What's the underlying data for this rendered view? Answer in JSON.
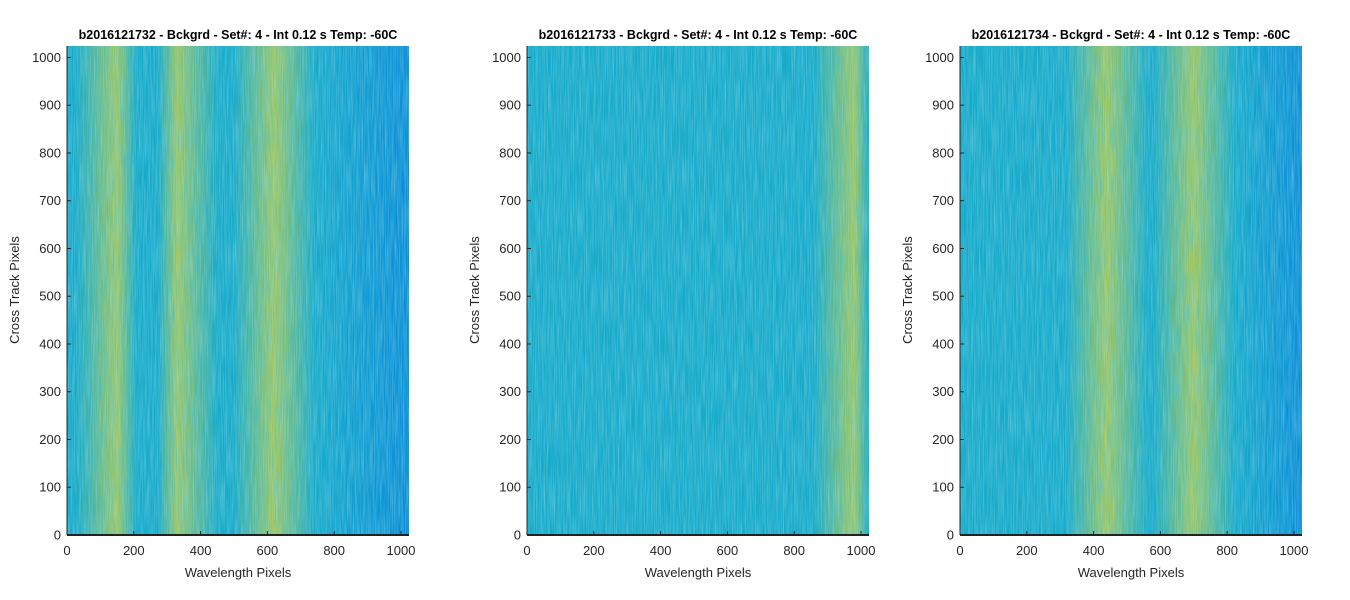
{
  "chart_data": [
    {
      "type": "heatmap",
      "title": "b2016121732 - Bckgrd - Set#: 4 - Int 0.12 s Temp: -60C",
      "xlabel": "Wavelength Pixels",
      "ylabel": "Cross Track Pixels",
      "xlim": [
        0,
        1024
      ],
      "ylim": [
        0,
        1024
      ],
      "xticks": [
        0,
        200,
        400,
        600,
        800,
        1000
      ],
      "yticks": [
        0,
        100,
        200,
        300,
        400,
        500,
        600,
        700,
        800,
        900,
        1000
      ],
      "grid": false,
      "colormap": "parula",
      "bright_bands": [
        150,
        330,
        620
      ]
    },
    {
      "type": "heatmap",
      "title": "b2016121733 - Bckgrd - Set#: 4 - Int 0.12 s Temp: -60C",
      "xlabel": "Wavelength Pixels",
      "ylabel": "Cross Track Pixels",
      "xlim": [
        0,
        1024
      ],
      "ylim": [
        0,
        1024
      ],
      "xticks": [
        0,
        200,
        400,
        600,
        800,
        1000
      ],
      "yticks": [
        0,
        100,
        200,
        300,
        400,
        500,
        600,
        700,
        800,
        900,
        1000
      ],
      "grid": false,
      "colormap": "parula",
      "bright_bands": [
        980
      ]
    },
    {
      "type": "heatmap",
      "title": "b2016121734 - Bckgrd - Set#: 4 - Int 0.12 s Temp: -60C",
      "xlabel": "Wavelength Pixels",
      "ylabel": "Cross Track Pixels",
      "xlim": [
        0,
        1024
      ],
      "ylim": [
        0,
        1024
      ],
      "xticks": [
        0,
        200,
        400,
        600,
        800,
        1000
      ],
      "yticks": [
        0,
        100,
        200,
        300,
        400,
        500,
        600,
        700,
        800,
        900,
        1000
      ],
      "grid": false,
      "colormap": "parula",
      "bright_bands": [
        440,
        700
      ]
    }
  ],
  "colors": {
    "base": "#17a9c6",
    "dark": "#0a8ad6",
    "bright": "#a8c85a",
    "axis": "#262626",
    "title": "#000000"
  }
}
